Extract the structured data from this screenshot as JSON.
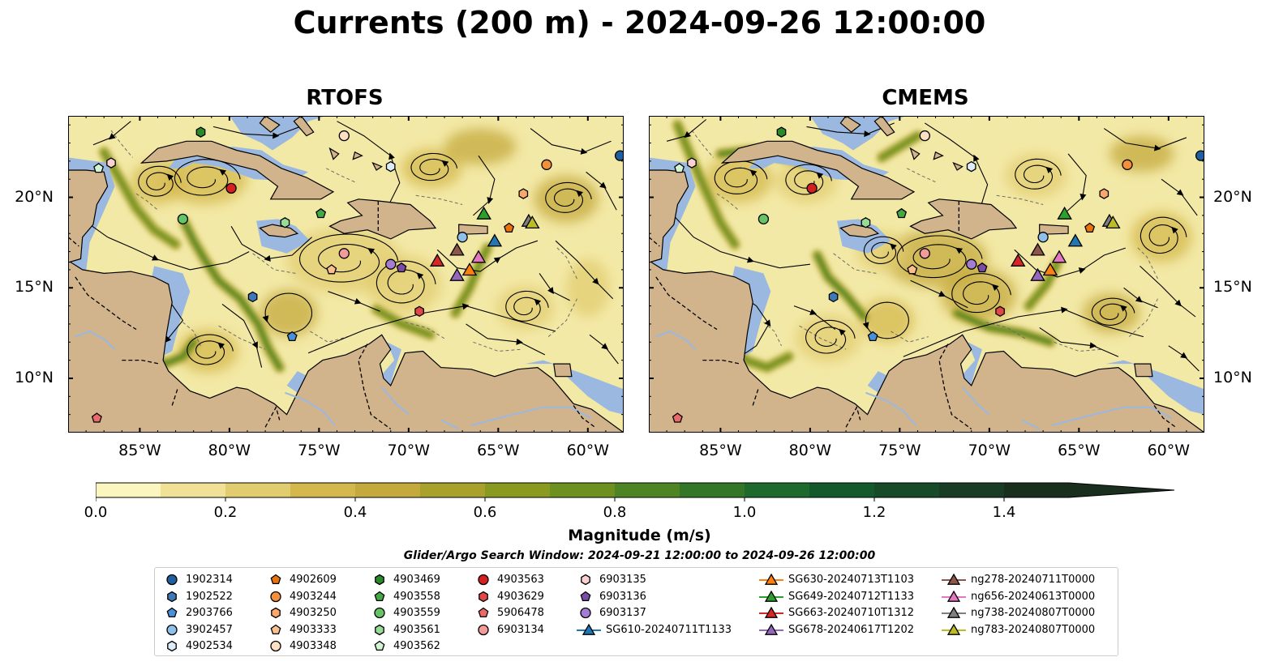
{
  "title": "Currents (200 m) - 2024-09-26 12:00:00",
  "panels": [
    {
      "title": "RTOFS"
    },
    {
      "title": "CMEMS"
    }
  ],
  "map": {
    "lon_range": [
      -89.0,
      -58.0
    ],
    "lat_range": [
      7.0,
      24.5
    ],
    "lon_ticks": [
      -85,
      -80,
      -75,
      -70,
      -65,
      -60
    ],
    "lon_tick_labels": [
      "85°W",
      "80°W",
      "75°W",
      "70°W",
      "65°W",
      "60°W"
    ],
    "lat_ticks": [
      10,
      15,
      20
    ],
    "lat_tick_labels": [
      "10°N",
      "15°N",
      "20°N"
    ],
    "colors": {
      "land": "#d2b48c",
      "shallow_water": "#9ab8e0",
      "ocean_base": "#f3e9a6"
    }
  },
  "colorbar": {
    "label": "Magnitude (m/s)",
    "min": 0.0,
    "max": 1.5,
    "extend": "max",
    "ticks": [
      0.0,
      0.2,
      0.4,
      0.6,
      0.8,
      1.0,
      1.2,
      1.4
    ],
    "tick_labels": [
      "0.0",
      "0.2",
      "0.4",
      "0.6",
      "0.8",
      "1.0",
      "1.2",
      "1.4"
    ],
    "colors": [
      "#fbf5c0",
      "#f0e196",
      "#e2cc70",
      "#d4b84e",
      "#c4aa3c",
      "#a8a12c",
      "#8a9a20",
      "#6d9020",
      "#4f8424",
      "#337628",
      "#1d6a2c",
      "#14592c",
      "#164a28",
      "#183c24",
      "#1a2e1e"
    ]
  },
  "search_window": "Glider/Argo Search Window: 2024-09-21 12:00:00 to 2024-09-26 12:00:00",
  "legend": [
    {
      "label": "1902314",
      "marker": "circle",
      "color": "#1f5fa0"
    },
    {
      "label": "1902522",
      "marker": "hexagon",
      "color": "#3f78b8"
    },
    {
      "label": "2903766",
      "marker": "pentagon",
      "color": "#4a8fd8"
    },
    {
      "label": "3902457",
      "marker": "circle",
      "color": "#8ec0ea"
    },
    {
      "label": "4902534",
      "marker": "hexagon",
      "color": "#dcecf8"
    },
    {
      "label": "4902609",
      "marker": "pentagon",
      "color": "#e8730c"
    },
    {
      "label": "4903244",
      "marker": "circle",
      "color": "#f5903a"
    },
    {
      "label": "4903250",
      "marker": "hexagon",
      "color": "#f8a86a"
    },
    {
      "label": "4903333",
      "marker": "pentagon",
      "color": "#fbc08e"
    },
    {
      "label": "4903348",
      "marker": "circle",
      "color": "#fde0c4"
    },
    {
      "label": "4903469",
      "marker": "hexagon",
      "color": "#2a8a2a"
    },
    {
      "label": "4903558",
      "marker": "pentagon",
      "color": "#44a844"
    },
    {
      "label": "4903559",
      "marker": "circle",
      "color": "#66c466"
    },
    {
      "label": "4903561",
      "marker": "hexagon",
      "color": "#96dc96"
    },
    {
      "label": "4903562",
      "marker": "pentagon",
      "color": "#d2f4d2"
    },
    {
      "label": "4903563",
      "marker": "circle",
      "color": "#d42020"
    },
    {
      "label": "4903629",
      "marker": "hexagon",
      "color": "#e04848"
    },
    {
      "label": "5906478",
      "marker": "pentagon",
      "color": "#ea6a6a"
    },
    {
      "label": "6903134",
      "marker": "circle",
      "color": "#f39a9a"
    },
    {
      "label": "6903135",
      "marker": "hexagon",
      "color": "#fad0d0"
    },
    {
      "label": "6903136",
      "marker": "pentagon",
      "color": "#7a4ca8"
    },
    {
      "label": "6903137",
      "marker": "circle",
      "color": "#a47cd4"
    },
    {
      "label": "SG610-20240711T1133",
      "marker": "triangle",
      "color": "#1f77b4"
    },
    {
      "label": "SG630-20240713T1103",
      "marker": "triangle",
      "color": "#ff7f0e"
    },
    {
      "label": "SG649-20240712T1133",
      "marker": "triangle",
      "color": "#2ca02c"
    },
    {
      "label": "SG663-20240710T1312",
      "marker": "triangle",
      "color": "#d62728"
    },
    {
      "label": "SG678-20240617T1202",
      "marker": "triangle",
      "color": "#9467bd"
    },
    {
      "label": "ng278-20240711T0000",
      "marker": "triangle",
      "color": "#8c564b"
    },
    {
      "label": "ng656-20240613T0000",
      "marker": "triangle",
      "color": "#e377c2"
    },
    {
      "label": "ng738-20240807T0000",
      "marker": "triangle",
      "color": "#7f7f7f"
    },
    {
      "label": "ng783-20240807T0000",
      "marker": "triangle",
      "color": "#bcbd22"
    }
  ],
  "points": [
    {
      "label": "1902314",
      "lon": -58.2,
      "lat": 22.3
    },
    {
      "label": "1902522",
      "lon": -78.7,
      "lat": 14.5
    },
    {
      "label": "2903766",
      "lon": -76.5,
      "lat": 12.3
    },
    {
      "label": "3902457",
      "lon": -67.0,
      "lat": 17.8
    },
    {
      "label": "4902534",
      "lon": -71.0,
      "lat": 21.7
    },
    {
      "label": "4902609",
      "lon": -64.4,
      "lat": 18.3
    },
    {
      "label": "4903244",
      "lon": -62.3,
      "lat": 21.8
    },
    {
      "label": "4903250",
      "lon": -63.6,
      "lat": 20.2
    },
    {
      "label": "4903333",
      "lon": -74.3,
      "lat": 16.0
    },
    {
      "label": "4903348",
      "lon": -73.6,
      "lat": 23.4
    },
    {
      "label": "4903469",
      "lon": -81.6,
      "lat": 23.6
    },
    {
      "label": "4903558",
      "lon": -74.9,
      "lat": 19.1
    },
    {
      "label": "4903559",
      "lon": -82.6,
      "lat": 18.8
    },
    {
      "label": "4903561",
      "lon": -76.9,
      "lat": 18.6
    },
    {
      "label": "4903562",
      "lon": -87.3,
      "lat": 21.6
    },
    {
      "label": "4903563",
      "lon": -79.9,
      "lat": 20.5
    },
    {
      "label": "4903629",
      "lon": -69.4,
      "lat": 13.7
    },
    {
      "label": "5906478",
      "lon": -87.4,
      "lat": 7.8
    },
    {
      "label": "6903134",
      "lon": -73.6,
      "lat": 16.9
    },
    {
      "label": "6903135",
      "lon": -86.6,
      "lat": 21.9
    },
    {
      "label": "6903136",
      "lon": -70.4,
      "lat": 16.1
    },
    {
      "label": "6903137",
      "lon": -71.0,
      "lat": 16.3
    },
    {
      "label": "SG610-20240711T1133",
      "lon": -65.2,
      "lat": 17.6
    },
    {
      "label": "SG630-20240713T1103",
      "lon": -66.6,
      "lat": 16.0
    },
    {
      "label": "SG649-20240712T1133",
      "lon": -65.8,
      "lat": 19.1
    },
    {
      "label": "SG663-20240710T1312",
      "lon": -68.4,
      "lat": 16.5
    },
    {
      "label": "SG678-20240617T1202",
      "lon": -67.3,
      "lat": 15.7
    },
    {
      "label": "ng278-20240711T0000",
      "lon": -67.3,
      "lat": 17.1
    },
    {
      "label": "ng656-20240613T0000",
      "lon": -66.1,
      "lat": 16.7
    },
    {
      "label": "ng738-20240807T0000",
      "lon": -63.3,
      "lat": 18.7
    },
    {
      "label": "ng783-20240807T0000",
      "lon": -63.1,
      "lat": 18.6
    }
  ]
}
